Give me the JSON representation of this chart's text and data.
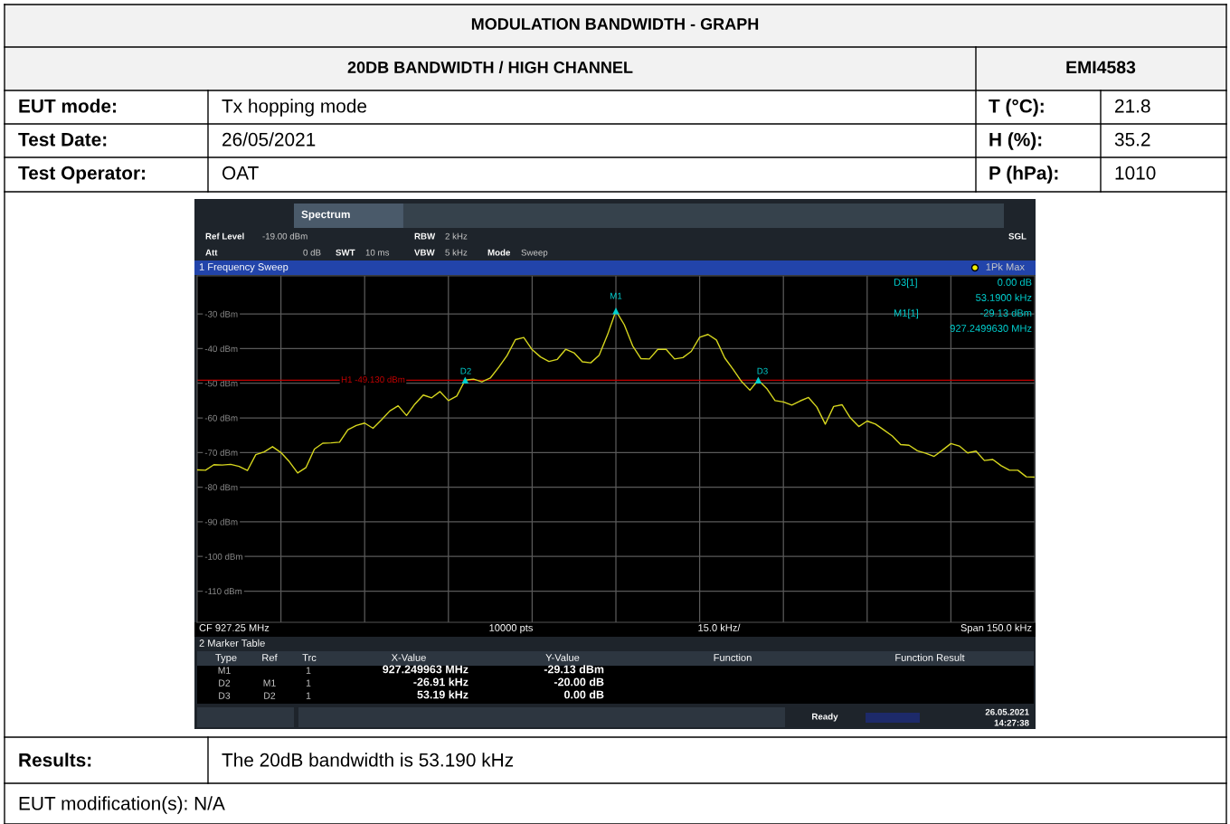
{
  "chart_data": {
    "type": "line",
    "title": "MODULATION BANDWIDTH - GRAPH",
    "subtitle": "20DB BANDWIDTH / HIGH CHANNEL",
    "categories": [
      null,
      null,
      null,
      null,
      null,
      null,
      null,
      null,
      null,
      null,
      null,
      null,
      null,
      null,
      null,
      null,
      null,
      null,
      null,
      null,
      null,
      null,
      null,
      null,
      null,
      null,
      null,
      null,
      null,
      null,
      null,
      null,
      null,
      null,
      null,
      null,
      null,
      null,
      null,
      null,
      null,
      null,
      null,
      null,
      null,
      null,
      null,
      null,
      null,
      null,
      null,
      null,
      null,
      null,
      null,
      null,
      null,
      null,
      null,
      null,
      null,
      null,
      null,
      null,
      null,
      null,
      null,
      null,
      null,
      null,
      null,
      null,
      null,
      null,
      null,
      null,
      null,
      null,
      null,
      null,
      null,
      null,
      null,
      null,
      null,
      null,
      null,
      null,
      null,
      null,
      null,
      null,
      null,
      null,
      null,
      null,
      null,
      null,
      null,
      null,
      null
    ],
    "series": [
      {
        "color": "#d6d61e",
        "values": [
          -75.0,
          -75.1,
          -73.5,
          -73.6,
          -73.4,
          -74.0,
          -75.2,
          -70.6,
          -69.8,
          -68.3,
          -70.0,
          -72.6,
          -75.9,
          -74.3,
          -69.0,
          -67.3,
          -67.2,
          -67.0,
          -63.4,
          -62.2,
          -61.5,
          -63.0,
          -60.6,
          -58.0,
          -56.5,
          -59.3,
          -56.0,
          -53.4,
          -54.2,
          -52.4,
          -55.0,
          -53.7,
          -49.1,
          -48.8,
          -49.6,
          -48.5,
          -45.4,
          -42.0,
          -37.4,
          -36.8,
          -40.3,
          -42.4,
          -43.7,
          -43.1,
          -40.2,
          -41.2,
          -43.8,
          -44.1,
          -41.9,
          -36.0,
          -29.1,
          -33.1,
          -39.2,
          -42.9,
          -43.0,
          -40.2,
          -40.2,
          -43.0,
          -42.6,
          -40.8,
          -36.7,
          -35.9,
          -37.5,
          -42.7,
          -46.0,
          -49.5,
          -52.0,
          -49.1,
          -51.5,
          -55.0,
          -55.4,
          -56.3,
          -55.1,
          -54.1,
          -56.9,
          -61.8,
          -56.7,
          -56.2,
          -60.0,
          -62.5,
          -60.9,
          -61.8,
          -63.5,
          -65.2,
          -67.7,
          -67.9,
          -69.5,
          -70.2,
          -71.1,
          -69.3,
          -67.4,
          -68.1,
          -70.1,
          -69.6,
          -72.3,
          -72.0,
          -73.8,
          -75.1,
          -75.1,
          -77.0,
          -77.1
        ]
      },
      {
        "type": "scatter",
        "color": "#00d0d0",
        "marker": "triangle",
        "values": [
          null,
          null,
          null,
          null,
          null,
          null,
          null,
          null,
          null,
          null,
          null,
          null,
          null,
          null,
          null,
          null,
          null,
          null,
          null,
          null,
          null,
          null,
          null,
          null,
          null,
          null,
          null,
          null,
          null,
          null,
          null,
          null,
          -49.1,
          null,
          null,
          null,
          null,
          null,
          null,
          null,
          null,
          null,
          null,
          null,
          null,
          null,
          null,
          null,
          null,
          null,
          -29.1,
          null,
          null,
          null,
          null,
          null,
          null,
          null,
          null,
          null,
          null,
          null,
          null,
          null,
          null,
          null,
          null,
          -49.1,
          null,
          null,
          null,
          null,
          null,
          null,
          null,
          null,
          null,
          null,
          null,
          null,
          null,
          null,
          null,
          null,
          null,
          null,
          null,
          null,
          null,
          null,
          null,
          null,
          null,
          null,
          null,
          null,
          null,
          null,
          null,
          null,
          null
        ]
      }
    ],
    "ylim": [
      -119,
      -19
    ],
    "yticks": [
      {
        "value": -30,
        "label": "-30 dBm"
      },
      {
        "value": -40,
        "label": "-40 dBm"
      },
      {
        "value": -50,
        "label": "-50 dBm"
      },
      {
        "value": -60,
        "label": "-60 dBm"
      },
      {
        "value": -70,
        "label": "-70 dBm"
      },
      {
        "value": -80,
        "label": "-80 dBm"
      },
      {
        "value": -90,
        "label": "-90 dBm"
      },
      {
        "value": -100,
        "label": "-100 dBm"
      },
      {
        "value": -110,
        "label": "-110 dBm"
      }
    ],
    "tick_labels": "y",
    "grid": true,
    "ref_lines": [
      {
        "axis": "y",
        "value": -49.13,
        "label": "H1 -49.130 dBm",
        "color": "#c00000"
      }
    ],
    "annotations": [
      "EMI4583",
      "EUT mode:",
      "Tx hopping mode",
      "T (°C):",
      "21.8",
      "Test Date:",
      "26/05/2021",
      "H (%):",
      "35.2",
      "Test Operator:",
      "OAT",
      "P (hPa):",
      "1010",
      "Spectrum",
      "Ref Level",
      "-19.00 dBm",
      "RBW",
      "2 kHz",
      "SGL",
      "Att",
      "0 dB",
      "SWT",
      "10 ms",
      "VBW",
      "5 kHz",
      "Mode",
      "Sweep",
      "1 Frequency Sweep",
      "1Pk Max",
      "D3[1]",
      "0.00 dB",
      "53.1900 kHz",
      "M1[1]",
      "-29.13 dBm",
      "927.2499630 MHz",
      "CF 927.25 MHz",
      "10000 pts",
      "15.0 kHz/",
      "Span 150.0 kHz",
      "2 Marker Table",
      "Type",
      "Ref",
      "Trc",
      "X-Value",
      "Y-Value",
      "Function",
      "Function Result",
      "M1",
      "1",
      "927.249963 MHz",
      "-29.13 dBm",
      "D2",
      "M1",
      "1",
      "-26.91 kHz",
      "-20.00 dB",
      "D3",
      "D2",
      "1",
      "53.19 kHz",
      "0.00 dB",
      "Ready",
      "26.05.2021",
      "14:27:38",
      "Results:",
      "The 20dB bandwidth is 53.190 kHz",
      "EUT modification(s): N/A",
      "M1",
      "D2",
      "D3"
    ]
  }
}
